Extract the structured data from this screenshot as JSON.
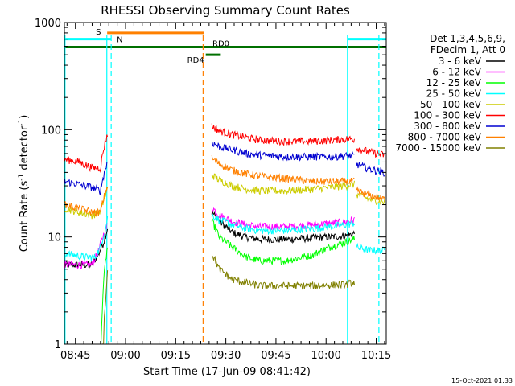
{
  "chart_data": {
    "type": "line",
    "title": "RHESSI Observing Summary Count Rates",
    "xlabel": "Start Time (17-Jun-09 08:41:42)",
    "ylabel_main": "Count Rate (s",
    "ylabel_sup": "-1",
    "ylabel_rest": " detector",
    "ylabel_sup2": "-1",
    "ylabel_end": ")",
    "yscale": "log",
    "ylim": [
      1,
      1000
    ],
    "y_ticks": [
      {
        "value": 1,
        "label": "1"
      },
      {
        "value": 10,
        "label": "10"
      },
      {
        "value": 100,
        "label": "100"
      },
      {
        "value": 1000,
        "label": "1000"
      }
    ],
    "xlim_min": [
      41.7,
      138.0
    ],
    "x_ticks": [
      {
        "value": 45,
        "label": "08:45"
      },
      {
        "value": 60,
        "label": "09:00"
      },
      {
        "value": 75,
        "label": "09:15"
      },
      {
        "value": 90,
        "label": "09:30"
      },
      {
        "value": 105,
        "label": "09:45"
      },
      {
        "value": 120,
        "label": "10:00"
      },
      {
        "value": 135,
        "label": "10:15"
      }
    ],
    "legend_header": [
      "Det 1,3,4,5,6,9,",
      "FDecim 1, Att 0"
    ],
    "timestamp": "15-Oct-2021 01:33",
    "flags": [
      {
        "label": "S",
        "color": "#ff8000",
        "y": 800,
        "start": 54.5,
        "end": 83.5
      },
      {
        "label": "N",
        "color": "#00ffff",
        "y": 700,
        "start": 41.7,
        "end": 55.7
      },
      {
        "label": "N",
        "color": "#00ffff",
        "y": 700,
        "start": 126.5,
        "end": 138.0
      },
      {
        "label": "RD0",
        "color": "#007000",
        "y": 590,
        "start": 41.7,
        "end": 138.0
      },
      {
        "label": "RD4",
        "color": "#007000",
        "y": 500,
        "start": 84.0,
        "end": 88.5
      }
    ],
    "vlines": [
      {
        "x": 41.9,
        "color": "#00ffff",
        "style": "solid"
      },
      {
        "x": 54.4,
        "color": "#00ffff",
        "style": "solid"
      },
      {
        "x": 55.7,
        "color": "#00ffff",
        "style": "dashed"
      },
      {
        "x": 83.2,
        "color": "#ff8000",
        "style": "dashed"
      },
      {
        "x": 126.4,
        "color": "#00ffff",
        "style": "solid"
      },
      {
        "x": 135.8,
        "color": "#00ffff",
        "style": "dashed"
      }
    ],
    "series": [
      {
        "name": "3 - 6 keV",
        "color": "#000000",
        "seg1": [
          [
            41.8,
            5.5
          ],
          [
            50,
            5.5
          ],
          [
            52,
            7
          ],
          [
            53.5,
            9
          ],
          [
            54.6,
            12
          ]
        ],
        "seg2": [
          [
            85.8,
            17
          ],
          [
            88,
            14
          ],
          [
            92,
            11
          ],
          [
            96,
            10
          ],
          [
            100,
            9.5
          ],
          [
            108,
            9.5
          ],
          [
            116,
            9.8
          ],
          [
            121,
            10
          ],
          [
            126,
            10.3
          ],
          [
            128.5,
            10.8
          ]
        ],
        "seg3": []
      },
      {
        "name": "6 - 12 keV",
        "color": "#ff00ff",
        "seg1": [
          [
            41.8,
            5.5
          ],
          [
            50,
            5.5
          ],
          [
            52,
            7.5
          ],
          [
            54.6,
            13
          ]
        ],
        "seg2": [
          [
            85.8,
            19
          ],
          [
            88,
            16
          ],
          [
            92,
            14
          ],
          [
            96,
            13
          ],
          [
            100,
            12.5
          ],
          [
            108,
            12.5
          ],
          [
            116,
            13
          ],
          [
            121,
            13.4
          ],
          [
            126,
            13.8
          ],
          [
            128.5,
            14.5
          ]
        ],
        "seg3": []
      },
      {
        "name": "12 - 25 keV",
        "color": "#00ff00",
        "seg1": [
          [
            41.8,
            0
          ],
          [
            52.5,
            0
          ],
          [
            53,
            2
          ],
          [
            53.5,
            4
          ],
          [
            54.6,
            8
          ]
        ],
        "seg2": [
          [
            85.8,
            14
          ],
          [
            88,
            10
          ],
          [
            92,
            8
          ],
          [
            96,
            6.5
          ],
          [
            100,
            6
          ],
          [
            108,
            6
          ],
          [
            116,
            6.8
          ],
          [
            121,
            8
          ],
          [
            126,
            9
          ],
          [
            128.5,
            9.6
          ]
        ],
        "seg3": []
      },
      {
        "name": "25 - 50 keV",
        "color": "#00ffff",
        "seg1": [
          [
            41.8,
            7
          ],
          [
            48,
            6.5
          ],
          [
            51,
            6.5
          ],
          [
            52.5,
            8
          ],
          [
            54,
            12
          ],
          [
            54.6,
            15
          ]
        ],
        "seg2": [
          [
            85.8,
            16
          ],
          [
            88,
            14.5
          ],
          [
            92,
            13
          ],
          [
            96,
            12
          ],
          [
            100,
            11.5
          ],
          [
            108,
            11.5
          ],
          [
            116,
            12
          ],
          [
            121,
            12.5
          ],
          [
            126,
            13
          ],
          [
            128.5,
            13.5
          ]
        ],
        "seg3": [
          [
            129,
            8
          ],
          [
            133,
            7.5
          ],
          [
            137.5,
            7.5
          ]
        ]
      },
      {
        "name": "50 - 100 keV",
        "color": "#cccc00",
        "seg1": [
          [
            41.8,
            18.5
          ],
          [
            46,
            17
          ],
          [
            50,
            16
          ],
          [
            52.5,
            17
          ],
          [
            54.6,
            28
          ]
        ],
        "seg2": [
          [
            85.8,
            38
          ],
          [
            88,
            34
          ],
          [
            92,
            30
          ],
          [
            96,
            28
          ],
          [
            100,
            27
          ],
          [
            108,
            27
          ],
          [
            116,
            28
          ],
          [
            121,
            29
          ],
          [
            126,
            30
          ],
          [
            128.5,
            31
          ]
        ],
        "seg3": [
          [
            129,
            25
          ],
          [
            133,
            22.5
          ],
          [
            137.5,
            21
          ]
        ]
      },
      {
        "name": "100 - 300 keV",
        "color": "#ff0000",
        "seg1": [
          [
            41.8,
            53
          ],
          [
            46,
            50
          ],
          [
            50,
            44
          ],
          [
            52.5,
            44
          ],
          [
            54.6,
            92
          ]
        ],
        "seg2": [
          [
            85.8,
            108
          ],
          [
            88,
            98
          ],
          [
            92,
            90
          ],
          [
            96,
            85
          ],
          [
            100,
            80
          ],
          [
            108,
            78
          ],
          [
            116,
            78
          ],
          [
            121,
            80
          ],
          [
            126,
            82
          ],
          [
            128.5,
            82
          ]
        ],
        "seg3": [
          [
            129,
            68
          ],
          [
            133,
            62
          ],
          [
            137.5,
            58
          ]
        ]
      },
      {
        "name": "300 - 800 keV",
        "color": "#0000d0",
        "seg1": [
          [
            41.8,
            33
          ],
          [
            46,
            31
          ],
          [
            50,
            29
          ],
          [
            52.5,
            27
          ],
          [
            54.6,
            50
          ]
        ],
        "seg2": [
          [
            85.8,
            76
          ],
          [
            88,
            70
          ],
          [
            92,
            65
          ],
          [
            96,
            60
          ],
          [
            100,
            58
          ],
          [
            108,
            56
          ],
          [
            116,
            56
          ],
          [
            121,
            56
          ],
          [
            126,
            57
          ],
          [
            128.5,
            57
          ]
        ],
        "seg3": [
          [
            129,
            48
          ],
          [
            133,
            43
          ],
          [
            137.5,
            40
          ]
        ]
      },
      {
        "name": "800 - 7000 keV",
        "color": "#ff8000",
        "seg1": [
          [
            41.8,
            20
          ],
          [
            46,
            18.5
          ],
          [
            50,
            17
          ],
          [
            52.5,
            17
          ],
          [
            54.6,
            30
          ]
        ],
        "seg2": [
          [
            85.8,
            54
          ],
          [
            88,
            48
          ],
          [
            92,
            42
          ],
          [
            96,
            39
          ],
          [
            100,
            37
          ],
          [
            108,
            35
          ],
          [
            116,
            33
          ],
          [
            121,
            33
          ],
          [
            126,
            33
          ],
          [
            128.5,
            33
          ]
        ],
        "seg3": [
          [
            129,
            27
          ],
          [
            133,
            24.5
          ],
          [
            137.5,
            22.5
          ]
        ]
      },
      {
        "name": "7000 - 15000 keV",
        "color": "#808000",
        "seg1": [
          [
            41.8,
            0
          ],
          [
            53.2,
            0
          ],
          [
            53.6,
            1.8
          ],
          [
            54.2,
            3
          ],
          [
            54.6,
            5
          ]
        ],
        "seg2": [
          [
            85.8,
            7
          ],
          [
            88,
            5
          ],
          [
            92,
            4
          ],
          [
            100,
            3.5
          ],
          [
            116,
            3.5
          ],
          [
            126,
            3.6
          ],
          [
            128.5,
            3.8
          ]
        ],
        "seg3": []
      }
    ]
  }
}
